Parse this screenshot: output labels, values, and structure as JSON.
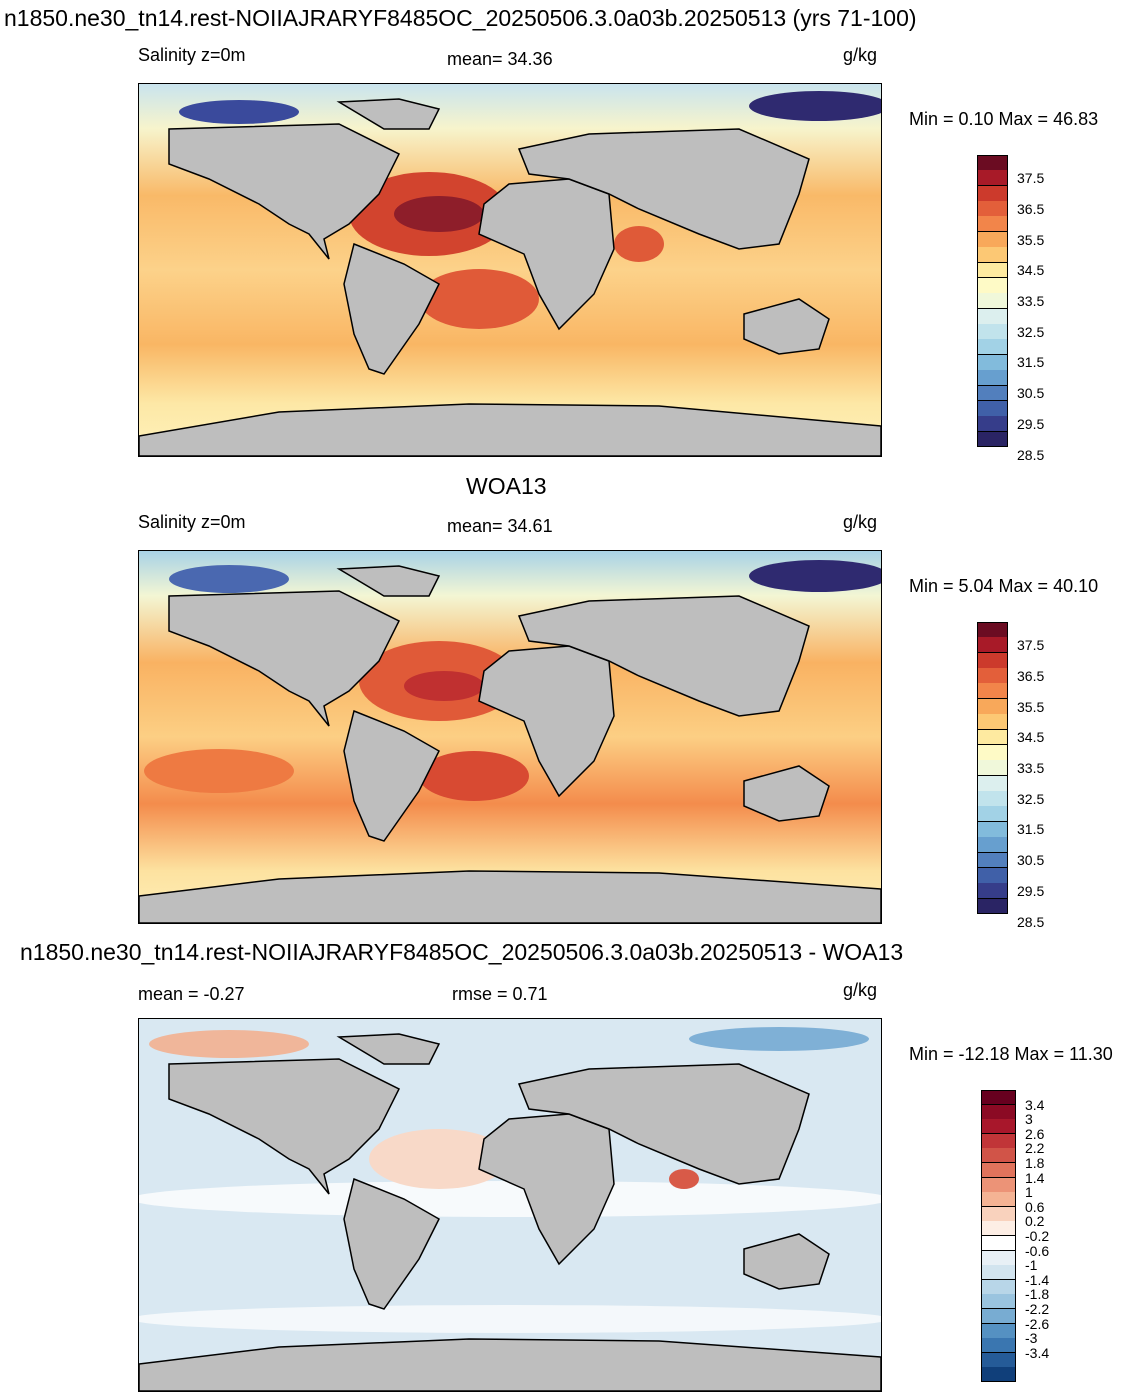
{
  "chart_data": [
    {
      "type": "heatmap",
      "title": "n1850.ne30_tn14.rest-NOIIAJRARYF8485OC_20250506.3.0a03b.20250513 (yrs 71-100)",
      "subtitle_left": "Salinity z=0m",
      "mean_text": "mean=  34.36",
      "units": "g/kg",
      "minmax_text": "Min =   0.10 Max =  46.83",
      "min": 0.1,
      "max": 46.83,
      "mean": 34.36,
      "colorbar": {
        "labels": [
          "37.5",
          "36.5",
          "35.5",
          "34.5",
          "33.5",
          "32.5",
          "31.5",
          "30.5",
          "29.5",
          "28.5"
        ],
        "colors": [
          "#6b0c22",
          "#a81a28",
          "#cc3a2c",
          "#e35f3a",
          "#f2854a",
          "#f8a85a",
          "#fcc874",
          "#feeaa0",
          "#fefac6",
          "#f0f8da",
          "#dcefee",
          "#c1e3ec",
          "#a2d2e6",
          "#82bbdc",
          "#679fcf",
          "#527fbd",
          "#4060a8",
          "#363d8a",
          "#2a2464"
        ]
      }
    },
    {
      "type": "heatmap",
      "title": "WOA13",
      "subtitle_left": "Salinity z=0m",
      "mean_text": "mean=  34.61",
      "units": "g/kg",
      "minmax_text": "Min =   5.04 Max =  40.10",
      "min": 5.04,
      "max": 40.1,
      "mean": 34.61,
      "colorbar": {
        "labels": [
          "37.5",
          "36.5",
          "35.5",
          "34.5",
          "33.5",
          "32.5",
          "31.5",
          "30.5",
          "29.5",
          "28.5"
        ],
        "colors": [
          "#6b0c22",
          "#a81a28",
          "#cc3a2c",
          "#e35f3a",
          "#f2854a",
          "#f8a85a",
          "#fcc874",
          "#feeaa0",
          "#fefac6",
          "#f0f8da",
          "#dcefee",
          "#c1e3ec",
          "#a2d2e6",
          "#82bbdc",
          "#679fcf",
          "#527fbd",
          "#4060a8",
          "#363d8a",
          "#2a2464"
        ]
      }
    },
    {
      "type": "heatmap",
      "title": "n1850.ne30_tn14.rest-NOIIAJRARYF8485OC_20250506.3.0a03b.20250513 - WOA13",
      "mean_text": "mean =  -0.27",
      "rmse_text": "rmse =   0.71",
      "units": "g/kg",
      "minmax_text": "Min = -12.18 Max =  11.30",
      "min": -12.18,
      "max": 11.3,
      "mean": -0.27,
      "rmse": 0.71,
      "colorbar": {
        "labels": [
          "3.4",
          "3",
          "2.6",
          "2.2",
          "1.8",
          "1.4",
          "1",
          "0.6",
          "0.2",
          "-0.2",
          "-0.6",
          "-1",
          "-1.4",
          "-1.8",
          "-2.2",
          "-2.6",
          "-3",
          "-3.4"
        ],
        "colors": [
          "#67001f",
          "#8b0a24",
          "#a8172b",
          "#c13538",
          "#d15448",
          "#e0735c",
          "#ec9377",
          "#f4b394",
          "#f9d2bd",
          "#fdeee5",
          "#ffffff",
          "#e8f0f6",
          "#d2e4ef",
          "#b8d6e8",
          "#9ac4df",
          "#78acd2",
          "#5591c2",
          "#3a76b0",
          "#255b98",
          "#103f7a"
        ]
      }
    }
  ]
}
